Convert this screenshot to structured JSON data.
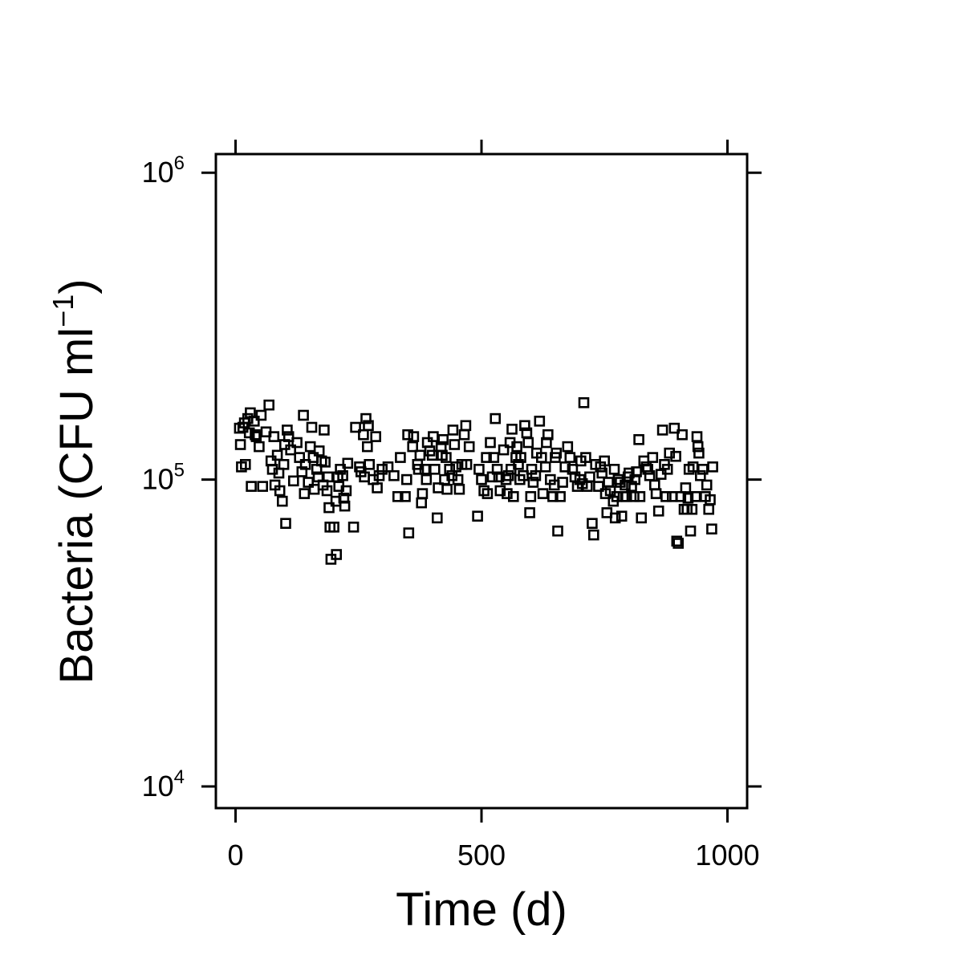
{
  "chart_data": {
    "type": "scatter",
    "title": "",
    "xlabel": "Time (d)",
    "ylabel": {
      "main": "Bacteria (CFU ml",
      "exponent": "−1",
      "close": ")"
    },
    "xlim": [
      -40,
      1040
    ],
    "ylim": [
      8500,
      1150000
    ],
    "y_scale": "log10",
    "x_ticks": [
      {
        "value": 0,
        "label": "0"
      },
      {
        "value": 500,
        "label": "500"
      },
      {
        "value": 1000,
        "label": "1000"
      }
    ],
    "y_ticks": [
      {
        "value": 10000,
        "base": "10",
        "exponent": "4"
      },
      {
        "value": 100000,
        "base": "10",
        "exponent": "5"
      },
      {
        "value": 1000000,
        "base": "10",
        "exponent": "6"
      }
    ],
    "marker": "open-square",
    "marker_color": "#000000",
    "grid": false,
    "legend": "none",
    "points": [
      [
        8,
        147000
      ],
      [
        10,
        130000
      ],
      [
        12,
        110000
      ],
      [
        15,
        148000
      ],
      [
        18,
        153000
      ],
      [
        20,
        112000
      ],
      [
        25,
        158000
      ],
      [
        28,
        142000
      ],
      [
        30,
        165000
      ],
      [
        32,
        95000
      ],
      [
        38,
        155000
      ],
      [
        40,
        140000
      ],
      [
        42,
        138000
      ],
      [
        48,
        128000
      ],
      [
        52,
        162000
      ],
      [
        55,
        95000
      ],
      [
        62,
        143000
      ],
      [
        68,
        175000
      ],
      [
        72,
        115000
      ],
      [
        75,
        108000
      ],
      [
        78,
        138000
      ],
      [
        80,
        96000
      ],
      [
        85,
        120000
      ],
      [
        88,
        105000
      ],
      [
        90,
        92000
      ],
      [
        95,
        85000
      ],
      [
        98,
        112000
      ],
      [
        100,
        130000
      ],
      [
        102,
        72000
      ],
      [
        105,
        145000
      ],
      [
        108,
        138000
      ],
      [
        112,
        125000
      ],
      [
        118,
        99000
      ],
      [
        125,
        132000
      ],
      [
        130,
        118000
      ],
      [
        135,
        106000
      ],
      [
        138,
        162000
      ],
      [
        140,
        90000
      ],
      [
        142,
        112000
      ],
      [
        148,
        98000
      ],
      [
        152,
        128000
      ],
      [
        155,
        148000
      ],
      [
        158,
        118000
      ],
      [
        160,
        93000
      ],
      [
        165,
        108000
      ],
      [
        168,
        102000
      ],
      [
        170,
        124000
      ],
      [
        175,
        115000
      ],
      [
        178,
        96000
      ],
      [
        180,
        145000
      ],
      [
        182,
        114000
      ],
      [
        186,
        92000
      ],
      [
        188,
        102000
      ],
      [
        190,
        81000
      ],
      [
        192,
        70000
      ],
      [
        194,
        55000
      ],
      [
        200,
        70000
      ],
      [
        204,
        85000
      ],
      [
        205,
        57000
      ],
      [
        208,
        102000
      ],
      [
        210,
        95000
      ],
      [
        213,
        108000
      ],
      [
        218,
        103000
      ],
      [
        220,
        87000
      ],
      [
        222,
        82000
      ],
      [
        225,
        92000
      ],
      [
        228,
        113000
      ],
      [
        240,
        70000
      ],
      [
        244,
        148000
      ],
      [
        252,
        110000
      ],
      [
        255,
        106000
      ],
      [
        260,
        140000
      ],
      [
        262,
        102000
      ],
      [
        265,
        158000
      ],
      [
        268,
        128000
      ],
      [
        270,
        150000
      ],
      [
        272,
        112000
      ],
      [
        280,
        100000
      ],
      [
        285,
        138000
      ],
      [
        288,
        94000
      ],
      [
        292,
        103000
      ],
      [
        298,
        108000
      ],
      [
        310,
        110000
      ],
      [
        322,
        103000
      ],
      [
        330,
        88000
      ],
      [
        335,
        118000
      ],
      [
        345,
        88000
      ],
      [
        348,
        100000
      ],
      [
        350,
        140000
      ],
      [
        352,
        67000
      ],
      [
        360,
        128000
      ],
      [
        362,
        138000
      ],
      [
        370,
        112000
      ],
      [
        372,
        108000
      ],
      [
        375,
        120000
      ],
      [
        378,
        84000
      ],
      [
        380,
        90000
      ],
      [
        385,
        108000
      ],
      [
        388,
        100000
      ],
      [
        390,
        132000
      ],
      [
        395,
        124000
      ],
      [
        400,
        120000
      ],
      [
        402,
        138000
      ],
      [
        405,
        108000
      ],
      [
        410,
        75000
      ],
      [
        412,
        94000
      ],
      [
        418,
        128000
      ],
      [
        420,
        120000
      ],
      [
        422,
        135000
      ],
      [
        425,
        100000
      ],
      [
        428,
        118000
      ],
      [
        430,
        93000
      ],
      [
        435,
        108000
      ],
      [
        440,
        103000
      ],
      [
        442,
        145000
      ],
      [
        445,
        130000
      ],
      [
        448,
        110000
      ],
      [
        452,
        100000
      ],
      [
        455,
        93000
      ],
      [
        460,
        112000
      ],
      [
        465,
        140000
      ],
      [
        468,
        150000
      ],
      [
        470,
        112000
      ],
      [
        475,
        128000
      ],
      [
        492,
        76000
      ],
      [
        495,
        108000
      ],
      [
        500,
        100000
      ],
      [
        505,
        92000
      ],
      [
        510,
        118000
      ],
      [
        512,
        90000
      ],
      [
        518,
        132000
      ],
      [
        522,
        102000
      ],
      [
        525,
        118000
      ],
      [
        528,
        158000
      ],
      [
        532,
        108000
      ],
      [
        535,
        102000
      ],
      [
        538,
        92000
      ],
      [
        545,
        125000
      ],
      [
        550,
        100000
      ],
      [
        552,
        90000
      ],
      [
        555,
        103000
      ],
      [
        558,
        132000
      ],
      [
        560,
        108000
      ],
      [
        562,
        146000
      ],
      [
        565,
        88000
      ],
      [
        570,
        118000
      ],
      [
        572,
        128000
      ],
      [
        575,
        112000
      ],
      [
        578,
        100000
      ],
      [
        580,
        118000
      ],
      [
        585,
        103000
      ],
      [
        588,
        150000
      ],
      [
        592,
        142000
      ],
      [
        595,
        132000
      ],
      [
        598,
        78000
      ],
      [
        600,
        88000
      ],
      [
        602,
        108000
      ],
      [
        605,
        98000
      ],
      [
        610,
        103000
      ],
      [
        612,
        122000
      ],
      [
        618,
        155000
      ],
      [
        622,
        118000
      ],
      [
        625,
        90000
      ],
      [
        630,
        110000
      ],
      [
        632,
        132000
      ],
      [
        635,
        140000
      ],
      [
        640,
        100000
      ],
      [
        645,
        88000
      ],
      [
        648,
        96000
      ],
      [
        650,
        118000
      ],
      [
        652,
        122000
      ],
      [
        655,
        68000
      ],
      [
        660,
        88000
      ],
      [
        665,
        98000
      ],
      [
        670,
        110000
      ],
      [
        675,
        128000
      ],
      [
        680,
        118000
      ],
      [
        685,
        108000
      ],
      [
        690,
        102000
      ],
      [
        695,
        95000
      ],
      [
        700,
        100000
      ],
      [
        702,
        115000
      ],
      [
        705,
        97000
      ],
      [
        708,
        178000
      ],
      [
        712,
        118000
      ],
      [
        715,
        95000
      ],
      [
        720,
        102000
      ],
      [
        725,
        72000
      ],
      [
        728,
        66000
      ],
      [
        732,
        112000
      ],
      [
        738,
        95000
      ],
      [
        742,
        110000
      ],
      [
        745,
        105000
      ],
      [
        750,
        115000
      ],
      [
        752,
        90000
      ],
      [
        755,
        78000
      ],
      [
        758,
        98000
      ],
      [
        762,
        92000
      ],
      [
        768,
        85000
      ],
      [
        770,
        108000
      ],
      [
        772,
        75000
      ],
      [
        775,
        88000
      ],
      [
        778,
        100000
      ],
      [
        782,
        98000
      ],
      [
        785,
        76000
      ],
      [
        788,
        88000
      ],
      [
        792,
        96000
      ],
      [
        795,
        88000
      ],
      [
        798,
        102000
      ],
      [
        800,
        105000
      ],
      [
        805,
        95000
      ],
      [
        810,
        88000
      ],
      [
        812,
        100000
      ],
      [
        815,
        106000
      ],
      [
        820,
        135000
      ],
      [
        822,
        88000
      ],
      [
        825,
        75000
      ],
      [
        830,
        115000
      ],
      [
        835,
        110000
      ],
      [
        838,
        108000
      ],
      [
        842,
        103000
      ],
      [
        848,
        118000
      ],
      [
        852,
        96000
      ],
      [
        855,
        90000
      ],
      [
        860,
        79000
      ],
      [
        865,
        104000
      ],
      [
        868,
        145000
      ],
      [
        872,
        112000
      ],
      [
        875,
        88000
      ],
      [
        878,
        108000
      ],
      [
        882,
        122000
      ],
      [
        888,
        88000
      ],
      [
        892,
        147000
      ],
      [
        895,
        119000
      ],
      [
        897,
        63000
      ],
      [
        900,
        62000
      ],
      [
        905,
        88000
      ],
      [
        908,
        140000
      ],
      [
        912,
        80000
      ],
      [
        915,
        94000
      ],
      [
        918,
        80000
      ],
      [
        920,
        87000
      ],
      [
        922,
        108000
      ],
      [
        925,
        68000
      ],
      [
        928,
        80000
      ],
      [
        930,
        110000
      ],
      [
        935,
        88000
      ],
      [
        938,
        138000
      ],
      [
        940,
        128000
      ],
      [
        942,
        122000
      ],
      [
        945,
        103000
      ],
      [
        950,
        108000
      ],
      [
        955,
        88000
      ],
      [
        958,
        96000
      ],
      [
        962,
        80000
      ],
      [
        965,
        86000
      ],
      [
        968,
        69000
      ],
      [
        970,
        110000
      ]
    ]
  }
}
